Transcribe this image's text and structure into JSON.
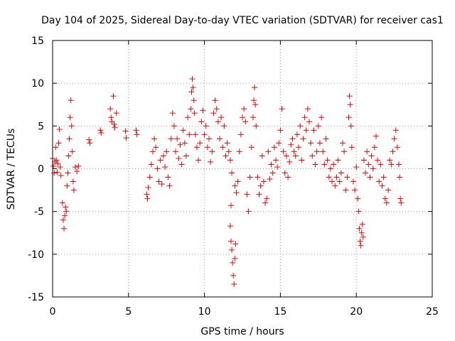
{
  "chart_data": {
    "type": "scatter",
    "title": "Day 104 of 2025, Sidereal Day-to-day VTEC variation (SDTVAR) for receiver cas1",
    "xlabel": "GPS time / hours",
    "ylabel": "SDTVAR / TECUs",
    "xlim": [
      0,
      25
    ],
    "ylim": [
      -15,
      15
    ],
    "xticks": [
      0,
      5,
      10,
      15,
      20,
      25
    ],
    "yticks": [
      -15,
      -10,
      -5,
      0,
      5,
      10,
      15
    ],
    "xtick_labels": [
      "0",
      "5",
      "10",
      "15",
      "20",
      "25"
    ],
    "ytick_labels": [
      "-15",
      "-10",
      "-5",
      "0",
      "5",
      "10",
      "15"
    ],
    "grid": true,
    "marker": "+",
    "color": "#ff0000",
    "series": [
      {
        "name": "SDTVAR",
        "points": [
          [
            0.0,
            1.2
          ],
          [
            0.05,
            0.3
          ],
          [
            0.1,
            -0.5
          ],
          [
            0.15,
            0.8
          ],
          [
            0.2,
            2.5
          ],
          [
            0.25,
            1.0
          ],
          [
            0.3,
            -0.4
          ],
          [
            0.35,
            0.6
          ],
          [
            0.4,
            3.0
          ],
          [
            0.45,
            4.6
          ],
          [
            0.5,
            0.2
          ],
          [
            0.55,
            -0.8
          ],
          [
            0.65,
            -4.0
          ],
          [
            0.7,
            -6.0
          ],
          [
            0.75,
            -7.0
          ],
          [
            0.8,
            -5.5
          ],
          [
            0.85,
            -4.5
          ],
          [
            0.9,
            -5.0
          ],
          [
            0.95,
            -2.0
          ],
          [
            1.0,
            -0.5
          ],
          [
            1.05,
            1.5
          ],
          [
            1.1,
            3.5
          ],
          [
            1.15,
            6.0
          ],
          [
            1.2,
            8.0
          ],
          [
            1.25,
            5.0
          ],
          [
            1.3,
            2.0
          ],
          [
            1.35,
            -1.5
          ],
          [
            1.4,
            -2.5
          ],
          [
            1.5,
            0.2
          ],
          [
            1.6,
            -0.3
          ],
          [
            1.7,
            0.3
          ],
          [
            2.4,
            3.4
          ],
          [
            2.45,
            3.0
          ],
          [
            3.15,
            4.5
          ],
          [
            3.2,
            4.2
          ],
          [
            3.8,
            7.0
          ],
          [
            3.85,
            6.0
          ],
          [
            3.9,
            5.5
          ],
          [
            4.0,
            8.5
          ],
          [
            4.05,
            5.2
          ],
          [
            4.1,
            4.8
          ],
          [
            4.2,
            6.5
          ],
          [
            4.8,
            4.4
          ],
          [
            4.85,
            3.6
          ],
          [
            5.5,
            4.5
          ],
          [
            5.55,
            4.0
          ],
          [
            6.2,
            -3.0
          ],
          [
            6.25,
            -3.5
          ],
          [
            6.3,
            -2.2
          ],
          [
            6.4,
            -1.0
          ],
          [
            6.5,
            0.5
          ],
          [
            6.6,
            2.0
          ],
          [
            6.7,
            3.5
          ],
          [
            6.8,
            2.5
          ],
          [
            6.9,
            0.0
          ],
          [
            7.0,
            -1.5
          ],
          [
            7.1,
            1.0
          ],
          [
            7.2,
            -1.8
          ],
          [
            7.3,
            1.5
          ],
          [
            7.4,
            0.2
          ],
          [
            7.5,
            2.0
          ],
          [
            7.6,
            -1.0
          ],
          [
            7.7,
            -2.0
          ],
          [
            7.8,
            3.5
          ],
          [
            7.9,
            6.5
          ],
          [
            8.0,
            5.0
          ],
          [
            8.1,
            2.0
          ],
          [
            8.2,
            3.5
          ],
          [
            8.3,
            1.2
          ],
          [
            8.4,
            2.8
          ],
          [
            8.5,
            0.5
          ],
          [
            8.6,
            4.5
          ],
          [
            8.7,
            3.0
          ],
          [
            8.8,
            1.5
          ],
          [
            8.9,
            6.0
          ],
          [
            9.0,
            4.0
          ],
          [
            9.1,
            7.0
          ],
          [
            9.15,
            9.0
          ],
          [
            9.2,
            10.5
          ],
          [
            9.25,
            9.5
          ],
          [
            9.3,
            8.0
          ],
          [
            9.35,
            6.5
          ],
          [
            9.4,
            4.0
          ],
          [
            9.5,
            2.5
          ],
          [
            9.6,
            1.0
          ],
          [
            9.7,
            3.0
          ],
          [
            9.8,
            5.5
          ],
          [
            9.9,
            6.8
          ],
          [
            10.0,
            4.0
          ],
          [
            10.1,
            5.0
          ],
          [
            10.2,
            2.5
          ],
          [
            10.3,
            3.5
          ],
          [
            10.4,
            0.8
          ],
          [
            10.5,
            2.0
          ],
          [
            10.6,
            6.5
          ],
          [
            10.7,
            8.0
          ],
          [
            10.8,
            7.0
          ],
          [
            10.9,
            5.5
          ],
          [
            11.0,
            3.5
          ],
          [
            11.1,
            6.0
          ],
          [
            11.2,
            2.5
          ],
          [
            11.3,
            5.0
          ],
          [
            11.4,
            1.5
          ],
          [
            11.5,
            3.0
          ],
          [
            11.6,
            2.0
          ],
          [
            11.7,
            1.0
          ],
          [
            11.8,
            -0.5
          ],
          [
            11.7,
            -6.7
          ],
          [
            11.75,
            -8.5
          ],
          [
            11.8,
            -9.5
          ],
          [
            11.85,
            -11.0
          ],
          [
            11.9,
            -12.5
          ],
          [
            11.95,
            -13.5
          ],
          [
            12.0,
            -10.5
          ],
          [
            12.05,
            -8.8
          ],
          [
            11.75,
            -4.3
          ],
          [
            12.0,
            -2.0
          ],
          [
            12.1,
            -2.8
          ],
          [
            12.2,
            -1.5
          ],
          [
            12.3,
            2.0
          ],
          [
            12.4,
            4.0
          ],
          [
            12.5,
            6.0
          ],
          [
            12.6,
            7.0
          ],
          [
            12.7,
            5.5
          ],
          [
            12.8,
            -3.0
          ],
          [
            12.9,
            -5.0
          ],
          [
            13.0,
            -1.0
          ],
          [
            13.1,
            2.5
          ],
          [
            13.2,
            6.0
          ],
          [
            13.25,
            8.0
          ],
          [
            13.3,
            9.5
          ],
          [
            13.35,
            7.5
          ],
          [
            13.4,
            5.0
          ],
          [
            13.5,
            -1.0
          ],
          [
            13.6,
            -3.0
          ],
          [
            13.7,
            -2.0
          ],
          [
            13.8,
            1.5
          ],
          [
            13.9,
            -1.5
          ],
          [
            14.0,
            -4.0
          ],
          [
            14.1,
            -3.5
          ],
          [
            14.2,
            2.0
          ],
          [
            14.3,
            -1.2
          ],
          [
            14.4,
            0.5
          ],
          [
            14.5,
            -0.5
          ],
          [
            14.6,
            2.5
          ],
          [
            14.7,
            1.0
          ],
          [
            14.8,
            0.2
          ],
          [
            14.9,
            3.0
          ],
          [
            15.0,
            4.5
          ],
          [
            15.1,
            7.0
          ],
          [
            15.2,
            2.0
          ],
          [
            15.3,
            -0.5
          ],
          [
            15.4,
            1.5
          ],
          [
            15.5,
            -1.0
          ],
          [
            15.6,
            0.8
          ],
          [
            15.7,
            2.8
          ],
          [
            15.8,
            3.5
          ],
          [
            15.9,
            2.0
          ],
          [
            16.0,
            1.5
          ],
          [
            16.1,
            4.0
          ],
          [
            16.2,
            2.5
          ],
          [
            16.3,
            5.0
          ],
          [
            16.4,
            1.0
          ],
          [
            16.5,
            3.5
          ],
          [
            16.6,
            6.0
          ],
          [
            16.7,
            4.5
          ],
          [
            16.8,
            7.0
          ],
          [
            16.9,
            5.5
          ],
          [
            17.0,
            3.0
          ],
          [
            17.1,
            1.5
          ],
          [
            17.2,
            4.5
          ],
          [
            17.3,
            0.5
          ],
          [
            17.4,
            2.0
          ],
          [
            17.5,
            5.0
          ],
          [
            17.6,
            3.0
          ],
          [
            17.7,
            6.0
          ],
          [
            17.8,
            2.0
          ],
          [
            17.9,
            0.5
          ],
          [
            18.0,
            3.5
          ],
          [
            18.1,
            1.0
          ],
          [
            18.2,
            -1.0
          ],
          [
            18.3,
            0.0
          ],
          [
            18.4,
            -1.5
          ],
          [
            18.5,
            0.5
          ],
          [
            18.6,
            -2.0
          ],
          [
            18.7,
            -1.0
          ],
          [
            18.8,
            1.0
          ],
          [
            18.9,
            -1.5
          ],
          [
            19.0,
            -0.5
          ],
          [
            19.1,
            3.0
          ],
          [
            19.2,
            2.0
          ],
          [
            19.3,
            -2.5
          ],
          [
            19.4,
            -1.0
          ],
          [
            19.5,
            6.0
          ],
          [
            19.55,
            8.5
          ],
          [
            19.6,
            7.5
          ],
          [
            19.65,
            5.0
          ],
          [
            19.7,
            2.5
          ],
          [
            19.8,
            -1.5
          ],
          [
            19.9,
            -2.5
          ],
          [
            20.0,
            0.2
          ],
          [
            20.1,
            -3.5
          ],
          [
            20.15,
            -5.0
          ],
          [
            20.2,
            -7.0
          ],
          [
            20.25,
            -8.5
          ],
          [
            20.3,
            -9.0
          ],
          [
            20.35,
            -7.5
          ],
          [
            20.4,
            -6.5
          ],
          [
            20.45,
            -8.0
          ],
          [
            20.5,
            1.0
          ],
          [
            20.6,
            -0.5
          ],
          [
            20.7,
            2.0
          ],
          [
            20.8,
            0.5
          ],
          [
            20.9,
            -1.0
          ],
          [
            21.0,
            1.5
          ],
          [
            21.1,
            0.0
          ],
          [
            21.2,
            2.5
          ],
          [
            21.3,
            3.8
          ],
          [
            21.4,
            1.0
          ],
          [
            21.5,
            -1.5
          ],
          [
            21.6,
            0.5
          ],
          [
            21.7,
            -2.0
          ],
          [
            21.8,
            -1.0
          ],
          [
            21.9,
            -3.5
          ],
          [
            22.0,
            -4.0
          ],
          [
            22.1,
            -2.5
          ],
          [
            22.2,
            1.0
          ],
          [
            22.3,
            0.5
          ],
          [
            22.4,
            2.0
          ],
          [
            22.5,
            3.5
          ],
          [
            22.6,
            4.5
          ],
          [
            22.7,
            2.5
          ],
          [
            22.8,
            0.5
          ],
          [
            22.85,
            -1.0
          ],
          [
            22.9,
            -3.5
          ],
          [
            22.95,
            -4.0
          ]
        ]
      }
    ]
  }
}
